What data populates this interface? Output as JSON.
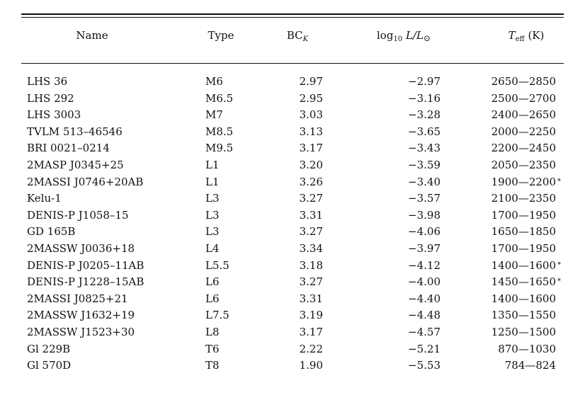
{
  "table": {
    "columns": {
      "name": "Name",
      "type": "Type",
      "bc": "BC",
      "bc_sub": "K",
      "lum_log": "log",
      "lum_log_sub": "10",
      "lum_expr": "L/L",
      "lum_odot": "⊙",
      "teff": "T",
      "teff_sub": "eff",
      "teff_unit": "(K)"
    },
    "rows": [
      {
        "name": "LHS 36",
        "type": "M6",
        "bc": "2.97",
        "lum": "−2.97",
        "teff": "2650—2850",
        "note": ""
      },
      {
        "name": "LHS 292",
        "type": "M6.5",
        "bc": "2.95",
        "lum": "−3.16",
        "teff": "2500—2700",
        "note": ""
      },
      {
        "name": "LHS 3003",
        "type": "M7",
        "bc": "3.03",
        "lum": "−3.28",
        "teff": "2400—2650",
        "note": ""
      },
      {
        "name": "TVLM 513–46546",
        "type": "M8.5",
        "bc": "3.13",
        "lum": "−3.65",
        "teff": "2000—2250",
        "note": ""
      },
      {
        "name": "BRI 0021–0214",
        "type": "M9.5",
        "bc": "3.17",
        "lum": "−3.43",
        "teff": "2200—2450",
        "note": ""
      },
      {
        "name": "2MASP J0345+25",
        "type": "L1",
        "bc": "3.20",
        "lum": "−3.59",
        "teff": "2050—2350",
        "note": ""
      },
      {
        "name": "2MASSI J0746+20AB",
        "type": "L1",
        "bc": "3.26",
        "lum": "−3.40",
        "teff": "1900—2200",
        "note": "*"
      },
      {
        "name": "Kelu-1",
        "type": "L3",
        "bc": "3.27",
        "lum": "−3.57",
        "teff": "2100—2350",
        "note": ""
      },
      {
        "name": "DENIS-P J1058–15",
        "type": "L3",
        "bc": "3.31",
        "lum": "−3.98",
        "teff": "1700—1950",
        "note": ""
      },
      {
        "name": "GD 165B",
        "type": "L3",
        "bc": "3.27",
        "lum": "−4.06",
        "teff": "1650—1850",
        "note": ""
      },
      {
        "name": "2MASSW J0036+18",
        "type": "L4",
        "bc": "3.34",
        "lum": "−3.97",
        "teff": "1700—1950",
        "note": ""
      },
      {
        "name": "DENIS-P J0205–11AB",
        "type": "L5.5",
        "bc": "3.18",
        "lum": "−4.12",
        "teff": "1400—1600",
        "note": "*"
      },
      {
        "name": "DENIS-P J1228–15AB",
        "type": "L6",
        "bc": "3.27",
        "lum": "−4.00",
        "teff": "1450—1650",
        "note": "*"
      },
      {
        "name": "2MASSI J0825+21",
        "type": "L6",
        "bc": "3.31",
        "lum": "−4.40",
        "teff": "1400—1600",
        "note": ""
      },
      {
        "name": "2MASSW J1632+19",
        "type": "L7.5",
        "bc": "3.19",
        "lum": "−4.48",
        "teff": "1350—1550",
        "note": ""
      },
      {
        "name": "2MASSW J1523+30",
        "type": "L8",
        "bc": "3.17",
        "lum": "−4.57",
        "teff": "1250—1500",
        "note": ""
      },
      {
        "name": "Gl 229B",
        "type": "T6",
        "bc": "2.22",
        "lum": "−5.21",
        "teff": "870—1030",
        "note": ""
      },
      {
        "name": "Gl 570D",
        "type": "T8",
        "bc": "1.90",
        "lum": "−5.53",
        "teff": "784—824",
        "note": ""
      }
    ]
  }
}
